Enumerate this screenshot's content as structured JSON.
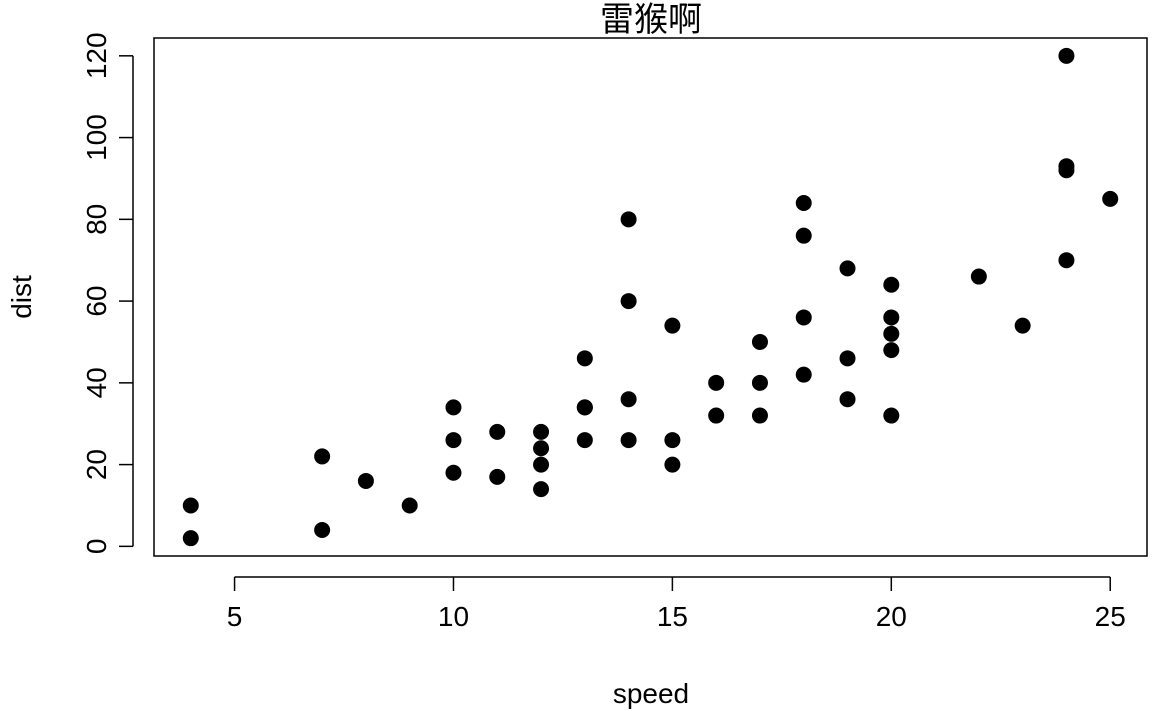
{
  "chart_data": {
    "type": "scatter",
    "title": "雷猴啊",
    "xlabel": "speed",
    "ylabel": "dist",
    "xlim": [
      3.16,
      25.84
    ],
    "ylim": [
      -2.36,
      124.36
    ],
    "xticks": [
      5,
      10,
      15,
      20,
      25
    ],
    "yticks": [
      0,
      20,
      40,
      60,
      80,
      100,
      120
    ],
    "grid": false,
    "legend": "none",
    "marker": "filled-circle",
    "color": "#000000",
    "points": [
      {
        "x": 4,
        "y": 2
      },
      {
        "x": 4,
        "y": 10
      },
      {
        "x": 7,
        "y": 4
      },
      {
        "x": 7,
        "y": 22
      },
      {
        "x": 8,
        "y": 16
      },
      {
        "x": 9,
        "y": 10
      },
      {
        "x": 10,
        "y": 18
      },
      {
        "x": 10,
        "y": 26
      },
      {
        "x": 10,
        "y": 34
      },
      {
        "x": 11,
        "y": 17
      },
      {
        "x": 11,
        "y": 28
      },
      {
        "x": 12,
        "y": 14
      },
      {
        "x": 12,
        "y": 20
      },
      {
        "x": 12,
        "y": 24
      },
      {
        "x": 12,
        "y": 28
      },
      {
        "x": 13,
        "y": 26
      },
      {
        "x": 13,
        "y": 34
      },
      {
        "x": 13,
        "y": 34
      },
      {
        "x": 13,
        "y": 46
      },
      {
        "x": 14,
        "y": 26
      },
      {
        "x": 14,
        "y": 36
      },
      {
        "x": 14,
        "y": 60
      },
      {
        "x": 14,
        "y": 80
      },
      {
        "x": 15,
        "y": 20
      },
      {
        "x": 15,
        "y": 26
      },
      {
        "x": 15,
        "y": 54
      },
      {
        "x": 16,
        "y": 32
      },
      {
        "x": 16,
        "y": 40
      },
      {
        "x": 17,
        "y": 32
      },
      {
        "x": 17,
        "y": 40
      },
      {
        "x": 17,
        "y": 50
      },
      {
        "x": 18,
        "y": 42
      },
      {
        "x": 18,
        "y": 56
      },
      {
        "x": 18,
        "y": 76
      },
      {
        "x": 18,
        "y": 84
      },
      {
        "x": 19,
        "y": 36
      },
      {
        "x": 19,
        "y": 46
      },
      {
        "x": 19,
        "y": 68
      },
      {
        "x": 20,
        "y": 32
      },
      {
        "x": 20,
        "y": 48
      },
      {
        "x": 20,
        "y": 52
      },
      {
        "x": 20,
        "y": 56
      },
      {
        "x": 20,
        "y": 64
      },
      {
        "x": 22,
        "y": 66
      },
      {
        "x": 23,
        "y": 54
      },
      {
        "x": 24,
        "y": 70
      },
      {
        "x": 24,
        "y": 92
      },
      {
        "x": 24,
        "y": 93
      },
      {
        "x": 24,
        "y": 120
      },
      {
        "x": 25,
        "y": 85
      }
    ]
  }
}
